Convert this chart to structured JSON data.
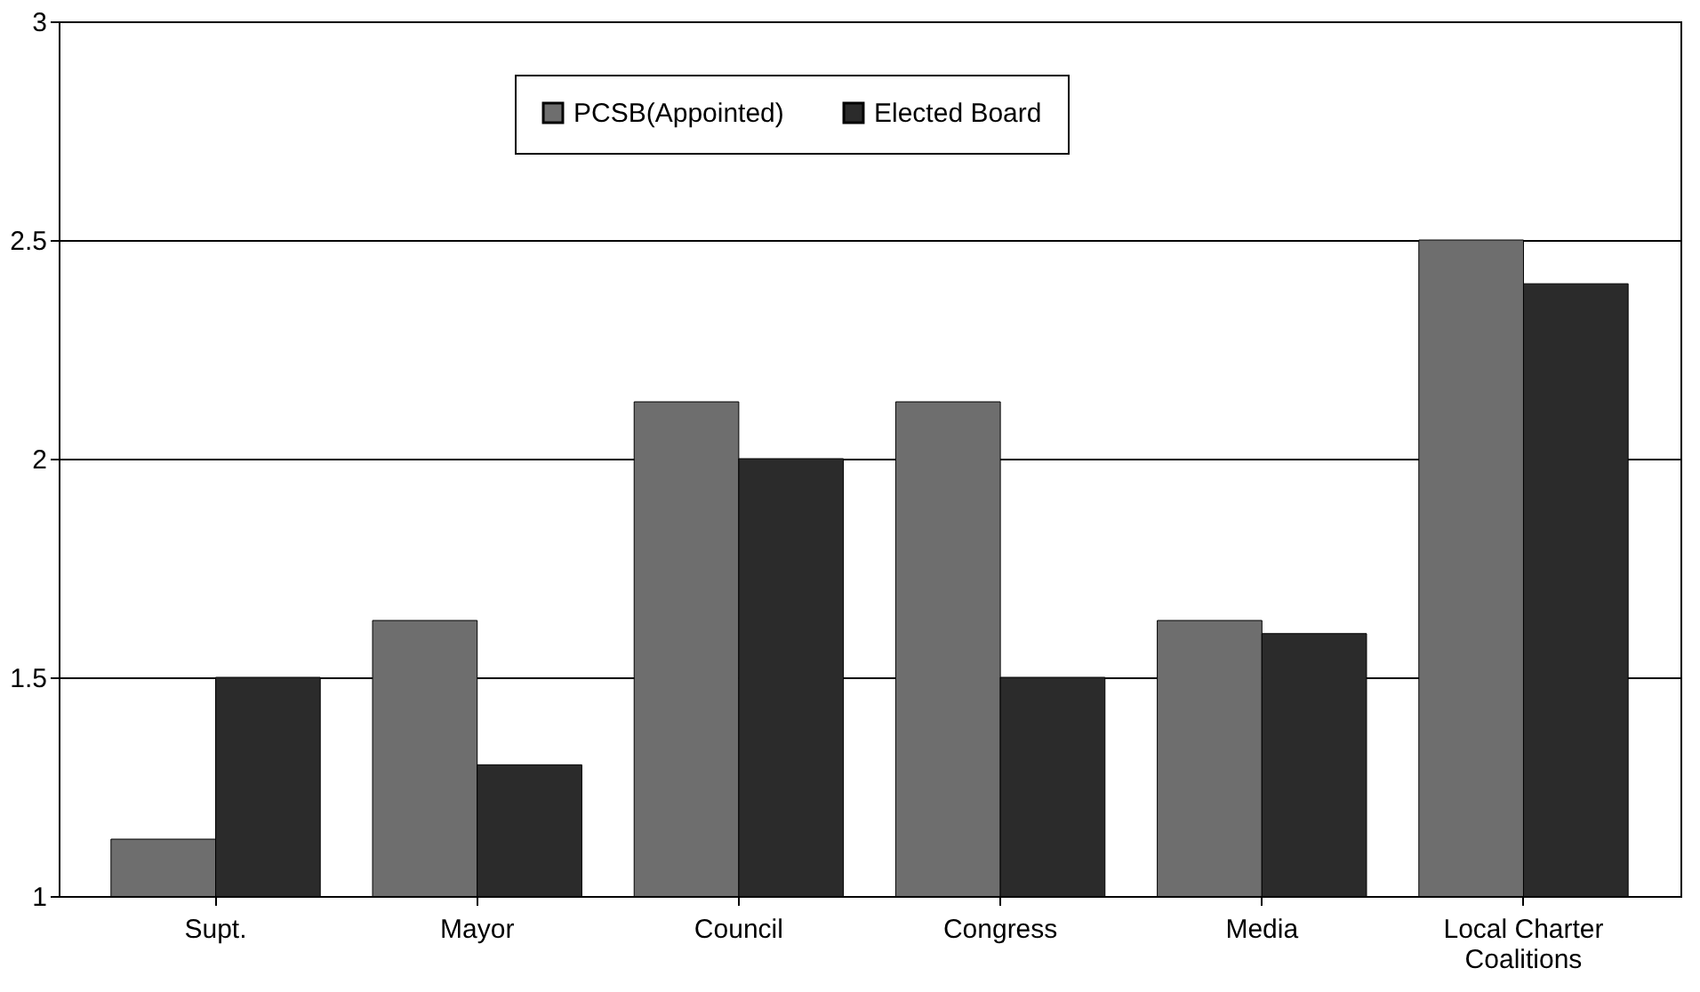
{
  "chart_data": {
    "type": "bar",
    "categories": [
      "Supt.",
      "Mayor",
      "Council",
      "Congress",
      "Media",
      "Local Charter Coalitions"
    ],
    "series": [
      {
        "name": "PCSB(Appointed)",
        "color": "#6e6e6e",
        "values": [
          1.13,
          1.63,
          2.13,
          2.13,
          1.63,
          2.5
        ]
      },
      {
        "name": "Elected Board",
        "color": "#2b2b2b",
        "values": [
          1.5,
          1.3,
          2.0,
          1.5,
          1.6,
          2.4
        ]
      }
    ],
    "ylim": [
      1,
      3
    ],
    "yticks": [
      1,
      1.5,
      2,
      2.5,
      3
    ],
    "grid": "y",
    "legend": "top"
  }
}
